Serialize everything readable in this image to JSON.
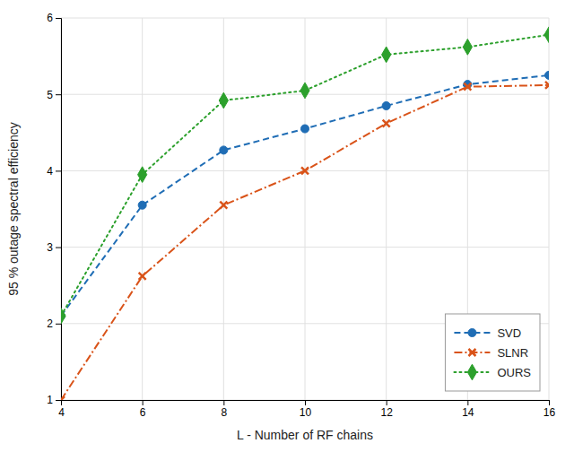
{
  "chart_data": {
    "type": "line",
    "xlabel": "L - Number of RF chains",
    "ylabel": "95 % outage spectral efficiency",
    "x": [
      4,
      6,
      8,
      10,
      12,
      14,
      16
    ],
    "series": [
      {
        "name": "SVD",
        "color": "#1f6db5",
        "marker": "circle",
        "line_style": "dashed",
        "values": [
          2.1,
          3.55,
          4.27,
          4.55,
          4.85,
          5.13,
          5.25
        ]
      },
      {
        "name": "SLNR",
        "color": "#d95319",
        "marker": "x",
        "line_style": "dashdot",
        "values": [
          1.0,
          2.62,
          3.55,
          4.0,
          4.62,
          5.1,
          5.12
        ]
      },
      {
        "name": "OURS",
        "color": "#2ca02c",
        "marker": "diamond",
        "line_style": "dotted",
        "values": [
          2.1,
          3.95,
          4.92,
          5.05,
          5.52,
          5.62,
          5.78
        ]
      }
    ],
    "xlim": [
      4,
      16
    ],
    "ylim": [
      1,
      6
    ],
    "xticks": [
      4,
      6,
      8,
      10,
      12,
      14,
      16
    ],
    "yticks": [
      1,
      2,
      3,
      4,
      5,
      6
    ],
    "grid": true,
    "legend": "lower right"
  }
}
